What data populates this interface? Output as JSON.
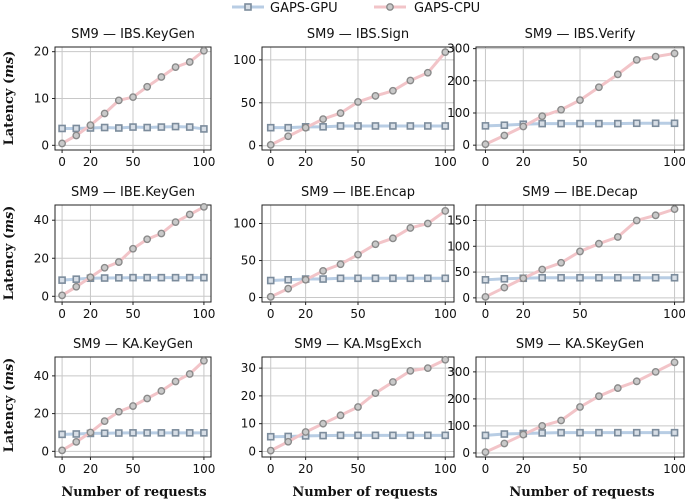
{
  "chart_data": {
    "type": "line",
    "x_label": "Number of requests",
    "y_label_prefix": "Latency (",
    "y_label_unit": "ms",
    "y_label_suffix": ")",
    "x_ticks": [
      0,
      20,
      50,
      100
    ],
    "x": [
      0,
      10,
      20,
      30,
      40,
      50,
      60,
      70,
      80,
      90,
      100
    ],
    "legend": {
      "position": "top-center",
      "entries": [
        "GAPS-GPU",
        "GAPS-CPU"
      ]
    },
    "colors": {
      "gpu_line": "#b8cde4",
      "gpu_marker": "#7c8c9c",
      "cpu_line": "#f2c4c8",
      "cpu_marker": "#8a8a8a",
      "grid": "#c8c8c8"
    },
    "panels": [
      {
        "title": "SM9 — IBS.KeyGen",
        "ylim": [
          -1,
          21
        ],
        "yticks": [
          0,
          10,
          20
        ],
        "series": [
          {
            "name": "GAPS-GPU",
            "values": [
              3.6,
              3.6,
              3.7,
              3.8,
              3.7,
              3.9,
              3.8,
              3.9,
              4.0,
              3.9,
              3.5
            ]
          },
          {
            "name": "GAPS-CPU",
            "values": [
              0.4,
              2.1,
              4.3,
              6.8,
              9.6,
              10.3,
              12.5,
              14.6,
              16.7,
              17.8,
              20.2
            ]
          }
        ]
      },
      {
        "title": "SM9 — IBS.Sign",
        "ylim": [
          -5,
          115
        ],
        "yticks": [
          0,
          50,
          100
        ],
        "series": [
          {
            "name": "GAPS-GPU",
            "values": [
              21,
              21,
              22,
              22,
              23,
              23,
              23,
              23,
              23,
              23,
              23
            ]
          },
          {
            "name": "GAPS-CPU",
            "values": [
              1,
              11,
              21,
              31,
              38,
              51,
              58,
              64,
              76,
              85,
              109
            ]
          }
        ]
      },
      {
        "title": "SM9 — IBS.Verify",
        "ylim": [
          -15,
          305
        ],
        "yticks": [
          0,
          100,
          200,
          300
        ],
        "series": [
          {
            "name": "GAPS-GPU",
            "values": [
              60,
              62,
              65,
              67,
              67,
              67,
              67,
              67,
              68,
              68,
              68
            ]
          },
          {
            "name": "GAPS-CPU",
            "values": [
              3,
              30,
              58,
              90,
              110,
              140,
              180,
              220,
              265,
              275,
              285
            ]
          }
        ]
      },
      {
        "title": "SM9 — IBE.KeyGen",
        "ylim": [
          -3,
          48
        ],
        "yticks": [
          0,
          20,
          40
        ],
        "series": [
          {
            "name": "GAPS-GPU",
            "values": [
              8.5,
              9.0,
              9.5,
              9.6,
              9.7,
              9.8,
              9.8,
              9.8,
              9.8,
              9.8,
              9.8
            ]
          },
          {
            "name": "GAPS-CPU",
            "values": [
              0.5,
              5,
              10,
              15,
              18,
              25,
              30,
              33,
              39,
              43,
              47
            ]
          }
        ]
      },
      {
        "title": "SM9 — IBE.Encap",
        "ylim": [
          -6,
          125
        ],
        "yticks": [
          0,
          50,
          100
        ],
        "series": [
          {
            "name": "GAPS-GPU",
            "values": [
              23,
              24,
              25,
              25,
              26,
              26,
              26,
              26,
              26,
              26,
              26
            ]
          },
          {
            "name": "GAPS-CPU",
            "values": [
              1,
              12,
              24,
              36,
              45,
              58,
              72,
              80,
              94,
              100,
              117
            ]
          }
        ]
      },
      {
        "title": "SM9 — IBE.Decap",
        "ylim": [
          -8,
          180
        ],
        "yticks": [
          0,
          50,
          100,
          150
        ],
        "series": [
          {
            "name": "GAPS-GPU",
            "values": [
              35,
              37,
              38,
              39,
              39,
              39,
              39,
              39,
              39,
              39,
              39
            ]
          },
          {
            "name": "GAPS-CPU",
            "values": [
              2,
              20,
              38,
              55,
              68,
              90,
              105,
              118,
              150,
              160,
              172
            ]
          }
        ]
      },
      {
        "title": "SM9 — KA.KeyGen",
        "ylim": [
          -3,
          50
        ],
        "yticks": [
          0,
          20,
          40
        ],
        "series": [
          {
            "name": "GAPS-GPU",
            "values": [
              9.0,
              9.2,
              9.5,
              9.6,
              9.7,
              9.8,
              9.8,
              9.8,
              9.8,
              9.8,
              9.8
            ]
          },
          {
            "name": "GAPS-CPU",
            "values": [
              0.5,
              5,
              10,
              16,
              21,
              24,
              28,
              32,
              37,
              41,
              48
            ]
          }
        ]
      },
      {
        "title": "SM9 — KA.MsgExch",
        "ylim": [
          -2,
          34
        ],
        "yticks": [
          0,
          10,
          20,
          30
        ],
        "series": [
          {
            "name": "GAPS-GPU",
            "values": [
              5.3,
              5.4,
              5.6,
              5.7,
              5.8,
              5.8,
              5.8,
              5.8,
              5.8,
              5.8,
              5.8
            ]
          },
          {
            "name": "GAPS-CPU",
            "values": [
              0.3,
              3.5,
              7,
              10,
              13,
              16,
              21,
              25,
              29,
              30,
              33
            ]
          }
        ]
      },
      {
        "title": "SM9 — KA.SKeyGen",
        "ylim": [
          -15,
          355
        ],
        "yticks": [
          0,
          100,
          200,
          300
        ],
        "series": [
          {
            "name": "GAPS-GPU",
            "values": [
              65,
              70,
              72,
              74,
              75,
              75,
              75,
              75,
              75,
              75,
              75
            ]
          },
          {
            "name": "GAPS-CPU",
            "values": [
              3,
              35,
              68,
              100,
              120,
              170,
              210,
              240,
              265,
              300,
              335
            ]
          }
        ]
      }
    ]
  }
}
